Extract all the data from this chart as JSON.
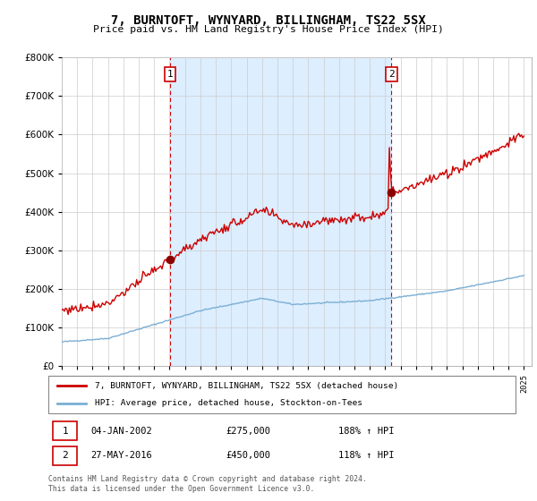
{
  "title": "7, BURNTOFT, WYNYARD, BILLINGHAM, TS22 5SX",
  "subtitle": "Price paid vs. HM Land Registry's House Price Index (HPI)",
  "legend_line1": "7, BURNTOFT, WYNYARD, BILLINGHAM, TS22 5SX (detached house)",
  "legend_line2": "HPI: Average price, detached house, Stockton-on-Tees",
  "annotation1_date": "04-JAN-2002",
  "annotation1_price": "£275,000",
  "annotation1_hpi": "188% ↑ HPI",
  "annotation2_date": "27-MAY-2016",
  "annotation2_price": "£450,000",
  "annotation2_hpi": "118% ↑ HPI",
  "footer1": "Contains HM Land Registry data © Crown copyright and database right 2024.",
  "footer2": "This data is licensed under the Open Government Licence v3.0.",
  "sale1_year": 2002.04,
  "sale1_price": 275000,
  "sale2_year": 2016.4,
  "sale2_price": 450000,
  "red_color": "#cc0000",
  "blue_color": "#7bafd4",
  "shade_color": "#ddeeff",
  "background_color": "#ffffff",
  "grid_color": "#cccccc",
  "ylim_min": 0,
  "ylim_max": 800000,
  "xlim_min": 1995,
  "xlim_max": 2025.5
}
